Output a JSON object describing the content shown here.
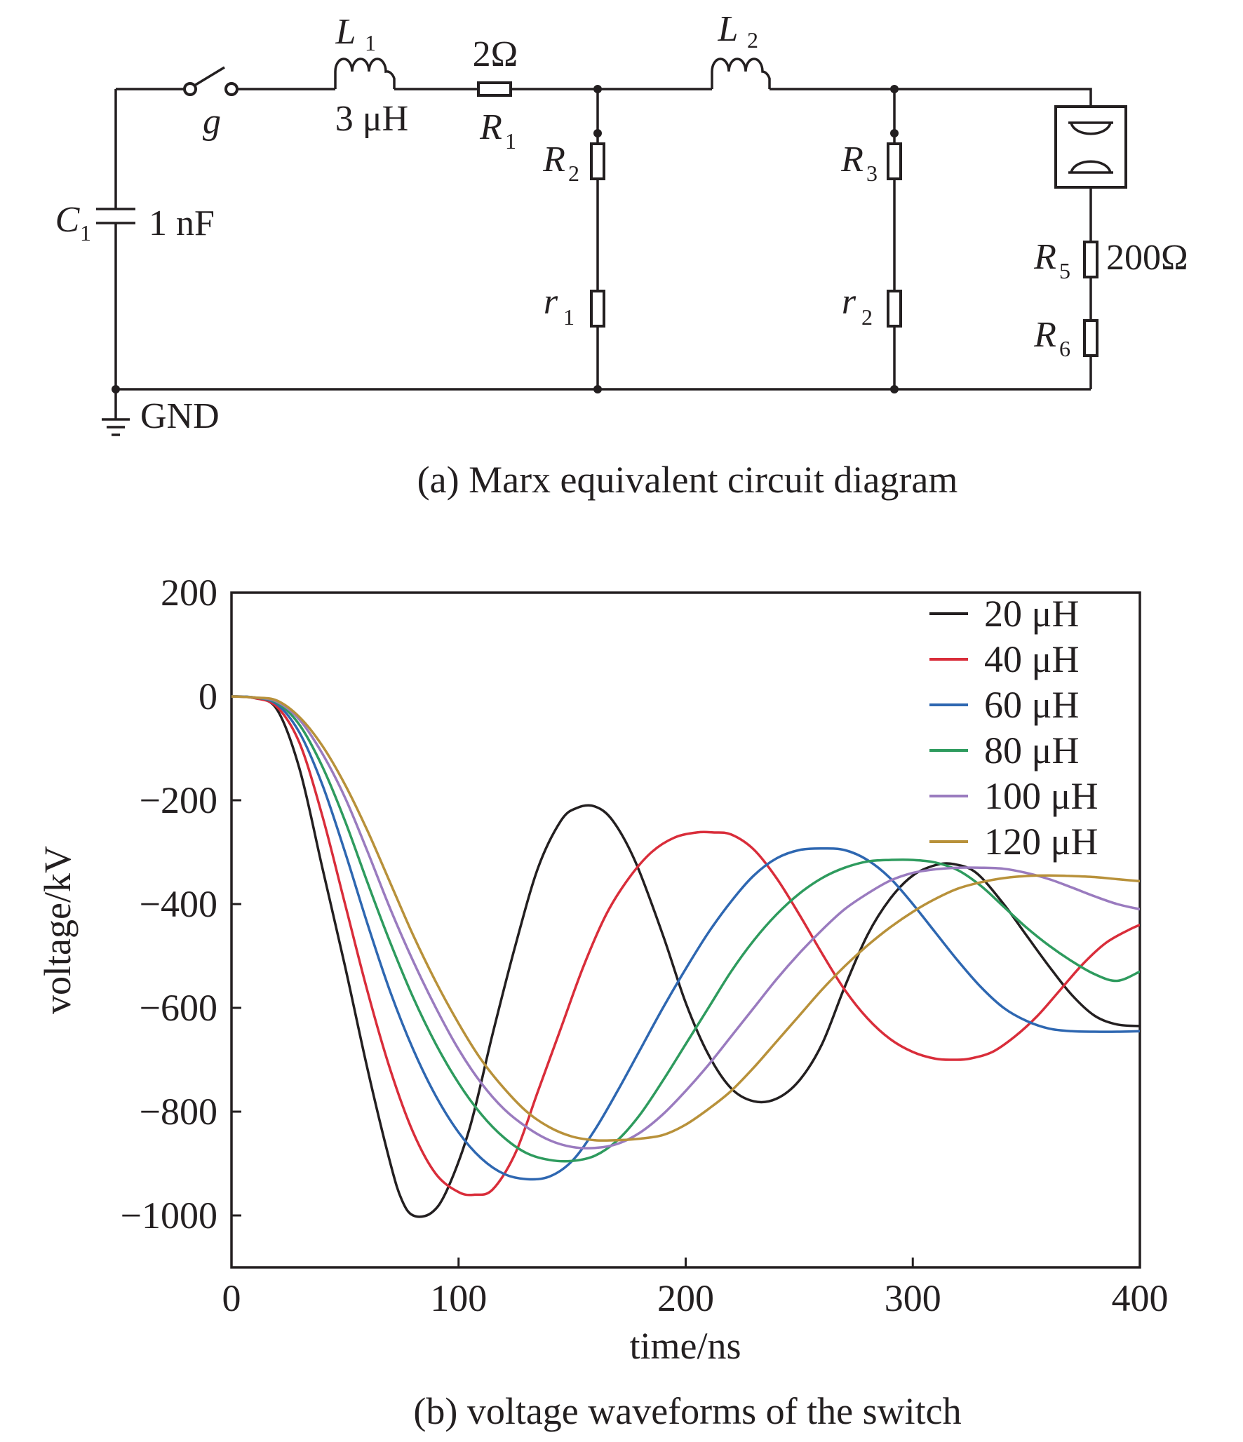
{
  "circuit": {
    "caption": "(a) Marx equivalent circuit diagram",
    "switch": {
      "label": "g"
    },
    "inductor1": {
      "symbol": "L",
      "sub": "1",
      "value": "3 μH"
    },
    "resistor1": {
      "symbol": "R",
      "sub": "1",
      "value": "2Ω"
    },
    "inductor2": {
      "symbol": "L",
      "sub": "2"
    },
    "capacitor1": {
      "symbol": "C",
      "sub": "1",
      "value": "1 nF"
    },
    "resistor2": {
      "symbol": "R",
      "sub": "2"
    },
    "resistor3": {
      "symbol": "R",
      "sub": "3"
    },
    "resistor_r1": {
      "symbol": "r",
      "sub": "1"
    },
    "resistor_r2": {
      "symbol": "r",
      "sub": "2"
    },
    "resistor5": {
      "symbol": "R",
      "sub": "5",
      "value": "200Ω"
    },
    "resistor6": {
      "symbol": "R",
      "sub": "6"
    },
    "ground": {
      "label": "GND"
    }
  },
  "chart_data": {
    "type": "line",
    "caption": "(b) voltage waveforms of the switch",
    "xlabel": "time/ns",
    "ylabel": "voltage/kV",
    "xlim": [
      0,
      400
    ],
    "ylim": [
      -1100,
      200
    ],
    "xticks": [
      0,
      100,
      200,
      300,
      400
    ],
    "yticks": [
      200,
      0,
      -200,
      -400,
      -600,
      -800,
      -1000
    ],
    "ytick_labels": [
      "200",
      "0",
      "−200",
      "−400",
      "−600",
      "−800",
      "−1000"
    ],
    "grid": false,
    "legend_position": "top-right",
    "series": [
      {
        "name": "20 μH",
        "color": "#231f20",
        "points": [
          [
            0,
            0
          ],
          [
            10,
            -3
          ],
          [
            20,
            -25
          ],
          [
            30,
            -140
          ],
          [
            40,
            -330
          ],
          [
            50,
            -520
          ],
          [
            60,
            -720
          ],
          [
            70,
            -900
          ],
          [
            75,
            -970
          ],
          [
            80,
            -1000
          ],
          [
            88,
            -995
          ],
          [
            95,
            -950
          ],
          [
            105,
            -830
          ],
          [
            115,
            -650
          ],
          [
            125,
            -480
          ],
          [
            135,
            -330
          ],
          [
            145,
            -240
          ],
          [
            152,
            -215
          ],
          [
            160,
            -212
          ],
          [
            168,
            -240
          ],
          [
            178,
            -320
          ],
          [
            190,
            -460
          ],
          [
            200,
            -590
          ],
          [
            210,
            -690
          ],
          [
            220,
            -755
          ],
          [
            230,
            -780
          ],
          [
            240,
            -775
          ],
          [
            250,
            -740
          ],
          [
            260,
            -670
          ],
          [
            270,
            -560
          ],
          [
            280,
            -460
          ],
          [
            290,
            -390
          ],
          [
            300,
            -345
          ],
          [
            310,
            -325
          ],
          [
            318,
            -323
          ],
          [
            328,
            -340
          ],
          [
            340,
            -400
          ],
          [
            350,
            -460
          ],
          [
            360,
            -520
          ],
          [
            370,
            -575
          ],
          [
            380,
            -615
          ],
          [
            390,
            -632
          ],
          [
            400,
            -635
          ]
        ]
      },
      {
        "name": "40 μH",
        "color": "#d92d3a",
        "points": [
          [
            0,
            0
          ],
          [
            10,
            -3
          ],
          [
            20,
            -20
          ],
          [
            30,
            -90
          ],
          [
            40,
            -230
          ],
          [
            50,
            -400
          ],
          [
            60,
            -570
          ],
          [
            70,
            -720
          ],
          [
            80,
            -840
          ],
          [
            90,
            -920
          ],
          [
            100,
            -955
          ],
          [
            107,
            -960
          ],
          [
            115,
            -950
          ],
          [
            125,
            -880
          ],
          [
            135,
            -760
          ],
          [
            145,
            -640
          ],
          [
            155,
            -520
          ],
          [
            165,
            -420
          ],
          [
            175,
            -350
          ],
          [
            185,
            -300
          ],
          [
            195,
            -272
          ],
          [
            205,
            -262
          ],
          [
            212,
            -262
          ],
          [
            220,
            -266
          ],
          [
            230,
            -295
          ],
          [
            240,
            -350
          ],
          [
            250,
            -420
          ],
          [
            260,
            -495
          ],
          [
            270,
            -565
          ],
          [
            280,
            -620
          ],
          [
            290,
            -660
          ],
          [
            300,
            -685
          ],
          [
            310,
            -698
          ],
          [
            318,
            -700
          ],
          [
            325,
            -698
          ],
          [
            335,
            -685
          ],
          [
            345,
            -655
          ],
          [
            355,
            -615
          ],
          [
            365,
            -565
          ],
          [
            375,
            -515
          ],
          [
            385,
            -475
          ],
          [
            395,
            -450
          ],
          [
            400,
            -440
          ]
        ]
      },
      {
        "name": "60 μH",
        "color": "#2e67b1",
        "points": [
          [
            0,
            0
          ],
          [
            10,
            -2
          ],
          [
            20,
            -15
          ],
          [
            30,
            -70
          ],
          [
            40,
            -170
          ],
          [
            50,
            -300
          ],
          [
            60,
            -440
          ],
          [
            70,
            -570
          ],
          [
            80,
            -680
          ],
          [
            90,
            -770
          ],
          [
            100,
            -840
          ],
          [
            110,
            -890
          ],
          [
            120,
            -920
          ],
          [
            130,
            -930
          ],
          [
            140,
            -925
          ],
          [
            150,
            -895
          ],
          [
            160,
            -835
          ],
          [
            170,
            -760
          ],
          [
            180,
            -680
          ],
          [
            190,
            -600
          ],
          [
            200,
            -525
          ],
          [
            210,
            -455
          ],
          [
            220,
            -395
          ],
          [
            230,
            -345
          ],
          [
            240,
            -312
          ],
          [
            250,
            -296
          ],
          [
            260,
            -293
          ],
          [
            270,
            -296
          ],
          [
            280,
            -315
          ],
          [
            290,
            -350
          ],
          [
            300,
            -400
          ],
          [
            310,
            -455
          ],
          [
            320,
            -510
          ],
          [
            330,
            -560
          ],
          [
            340,
            -600
          ],
          [
            350,
            -625
          ],
          [
            360,
            -640
          ],
          [
            370,
            -645
          ],
          [
            380,
            -646
          ],
          [
            390,
            -646
          ],
          [
            400,
            -645
          ]
        ]
      },
      {
        "name": "80 μH",
        "color": "#2e9b5e",
        "points": [
          [
            0,
            0
          ],
          [
            10,
            -2
          ],
          [
            20,
            -12
          ],
          [
            30,
            -55
          ],
          [
            40,
            -135
          ],
          [
            50,
            -240
          ],
          [
            60,
            -360
          ],
          [
            70,
            -475
          ],
          [
            80,
            -580
          ],
          [
            90,
            -670
          ],
          [
            100,
            -745
          ],
          [
            110,
            -805
          ],
          [
            120,
            -850
          ],
          [
            130,
            -880
          ],
          [
            140,
            -893
          ],
          [
            150,
            -895
          ],
          [
            160,
            -885
          ],
          [
            170,
            -855
          ],
          [
            180,
            -805
          ],
          [
            190,
            -740
          ],
          [
            200,
            -670
          ],
          [
            210,
            -600
          ],
          [
            220,
            -530
          ],
          [
            230,
            -470
          ],
          [
            240,
            -420
          ],
          [
            250,
            -380
          ],
          [
            260,
            -350
          ],
          [
            270,
            -330
          ],
          [
            280,
            -318
          ],
          [
            290,
            -315
          ],
          [
            300,
            -315
          ],
          [
            310,
            -320
          ],
          [
            320,
            -335
          ],
          [
            330,
            -365
          ],
          [
            340,
            -405
          ],
          [
            350,
            -445
          ],
          [
            360,
            -480
          ],
          [
            370,
            -510
          ],
          [
            380,
            -535
          ],
          [
            390,
            -548
          ],
          [
            400,
            -530
          ]
        ]
      },
      {
        "name": "100 μH",
        "color": "#9a7bbf",
        "points": [
          [
            0,
            0
          ],
          [
            10,
            -2
          ],
          [
            20,
            -10
          ],
          [
            30,
            -45
          ],
          [
            40,
            -110
          ],
          [
            50,
            -195
          ],
          [
            60,
            -300
          ],
          [
            70,
            -410
          ],
          [
            80,
            -510
          ],
          [
            90,
            -600
          ],
          [
            100,
            -680
          ],
          [
            110,
            -745
          ],
          [
            120,
            -795
          ],
          [
            130,
            -830
          ],
          [
            140,
            -855
          ],
          [
            150,
            -868
          ],
          [
            160,
            -870
          ],
          [
            170,
            -862
          ],
          [
            180,
            -840
          ],
          [
            190,
            -805
          ],
          [
            200,
            -760
          ],
          [
            210,
            -710
          ],
          [
            220,
            -655
          ],
          [
            230,
            -600
          ],
          [
            240,
            -545
          ],
          [
            250,
            -495
          ],
          [
            260,
            -450
          ],
          [
            270,
            -410
          ],
          [
            280,
            -380
          ],
          [
            290,
            -355
          ],
          [
            300,
            -340
          ],
          [
            310,
            -333
          ],
          [
            320,
            -330
          ],
          [
            330,
            -330
          ],
          [
            340,
            -332
          ],
          [
            350,
            -340
          ],
          [
            360,
            -352
          ],
          [
            370,
            -368
          ],
          [
            380,
            -385
          ],
          [
            390,
            -400
          ],
          [
            400,
            -410
          ]
        ]
      },
      {
        "name": "120 μH",
        "color": "#b8913a",
        "points": [
          [
            0,
            0
          ],
          [
            10,
            -2
          ],
          [
            20,
            -8
          ],
          [
            30,
            -40
          ],
          [
            40,
            -95
          ],
          [
            50,
            -170
          ],
          [
            60,
            -260
          ],
          [
            70,
            -360
          ],
          [
            80,
            -460
          ],
          [
            90,
            -550
          ],
          [
            100,
            -630
          ],
          [
            110,
            -700
          ],
          [
            120,
            -755
          ],
          [
            130,
            -800
          ],
          [
            140,
            -830
          ],
          [
            150,
            -848
          ],
          [
            160,
            -855
          ],
          [
            170,
            -855
          ],
          [
            180,
            -852
          ],
          [
            190,
            -845
          ],
          [
            200,
            -825
          ],
          [
            210,
            -795
          ],
          [
            220,
            -760
          ],
          [
            230,
            -715
          ],
          [
            240,
            -665
          ],
          [
            250,
            -615
          ],
          [
            260,
            -565
          ],
          [
            270,
            -520
          ],
          [
            280,
            -480
          ],
          [
            290,
            -445
          ],
          [
            300,
            -415
          ],
          [
            310,
            -390
          ],
          [
            320,
            -370
          ],
          [
            330,
            -358
          ],
          [
            340,
            -350
          ],
          [
            350,
            -346
          ],
          [
            360,
            -345
          ],
          [
            370,
            -346
          ],
          [
            380,
            -348
          ],
          [
            390,
            -352
          ],
          [
            400,
            -356
          ]
        ]
      }
    ]
  }
}
